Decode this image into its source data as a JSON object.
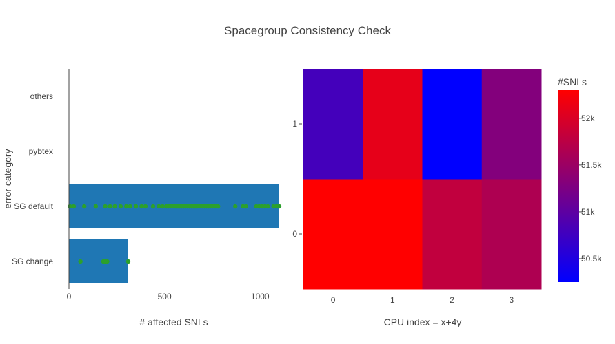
{
  "title": "Spacegroup Consistency Check",
  "chart_data": [
    {
      "type": "bar",
      "orientation": "horizontal",
      "categories": [
        "SG change",
        "SG default",
        "pybtex",
        "others"
      ],
      "values": [
        310,
        1100,
        0,
        0
      ],
      "color": "#1f77b4",
      "xlabel": "# affected SNLs",
      "ylabel": "error category",
      "xlim": [
        0,
        1100
      ],
      "xticks": [
        "0",
        "500",
        "1000"
      ],
      "markers": {
        "color": "#2ca02c",
        "SG change": [
          60,
          180,
          190,
          200,
          310
        ],
        "SG default": [
          5,
          25,
          80,
          140,
          190,
          215,
          240,
          270,
          300,
          320,
          350,
          380,
          400,
          440,
          470,
          490,
          510,
          520,
          530,
          540,
          550,
          560,
          570,
          580,
          590,
          600,
          610,
          620,
          630,
          640,
          650,
          660,
          670,
          680,
          690,
          700,
          710,
          720,
          730,
          740,
          750,
          760,
          770,
          780,
          870,
          910,
          925,
          980,
          995,
          1010,
          1025,
          1040,
          1070,
          1085,
          1095,
          1100
        ]
      },
      "grid": false,
      "legend": false
    },
    {
      "type": "heatmap",
      "xlabel": "CPU index = x+4y",
      "ylabel": "",
      "x": [
        0,
        1,
        2,
        3
      ],
      "y": [
        0,
        1
      ],
      "z": [
        [
          52300,
          52300,
          51800,
          51650
        ],
        [
          50800,
          52100,
          50250,
          51300
        ]
      ],
      "colorscale": [
        "#0000ff",
        "#ff0000"
      ],
      "zlim": [
        50250,
        52300
      ],
      "colorbar": {
        "title": "#SNLs",
        "ticks": [
          50500,
          51000,
          51500,
          52000
        ],
        "tick_labels": [
          "50.5k",
          "51k",
          "51.5k",
          "52k"
        ]
      }
    }
  ]
}
